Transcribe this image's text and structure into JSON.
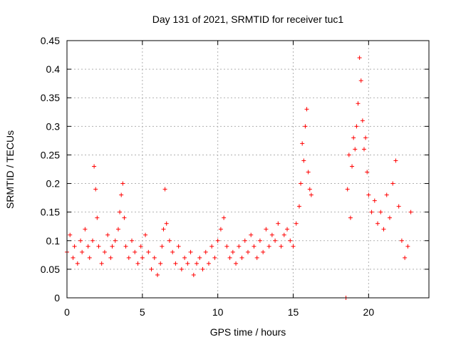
{
  "chart_data": {
    "type": "scatter",
    "title": "Day 131 of 2021, SRMTID for receiver tuc1",
    "xlabel": "GPS time / hours",
    "ylabel": "SRMTID / TECUs",
    "xlim": [
      0,
      24
    ],
    "ylim": [
      0,
      0.45
    ],
    "xticks": [
      0,
      5,
      10,
      15,
      20
    ],
    "xtick_labels": [
      "0",
      "5",
      "10",
      "15",
      "20"
    ],
    "yticks": [
      0,
      0.05,
      0.1,
      0.15,
      0.2,
      0.25,
      0.3,
      0.35,
      0.4,
      0.45
    ],
    "ytick_labels": [
      "0",
      "0.05",
      "0.1",
      "0.15",
      "0.2",
      "0.25",
      "0.3",
      "0.35",
      "0.4",
      "0.45"
    ],
    "grid": true,
    "marker": "+",
    "series": [
      {
        "name": "SRMTID",
        "color": "#ff0000",
        "x": [
          0.0,
          0.2,
          0.4,
          0.5,
          0.7,
          0.9,
          1.0,
          1.2,
          1.4,
          1.5,
          1.7,
          1.8,
          1.9,
          2.0,
          2.1,
          2.3,
          2.5,
          2.7,
          2.9,
          3.0,
          3.2,
          3.4,
          3.5,
          3.6,
          3.7,
          3.8,
          3.9,
          4.1,
          4.3,
          4.5,
          4.7,
          4.9,
          5.0,
          5.2,
          5.4,
          5.6,
          5.8,
          6.0,
          6.2,
          6.3,
          6.4,
          6.5,
          6.6,
          6.8,
          7.0,
          7.2,
          7.4,
          7.6,
          7.8,
          8.0,
          8.2,
          8.4,
          8.6,
          8.8,
          9.0,
          9.2,
          9.4,
          9.6,
          9.8,
          10.0,
          10.2,
          10.4,
          10.6,
          10.8,
          11.0,
          11.2,
          11.4,
          11.6,
          11.8,
          12.0,
          12.2,
          12.4,
          12.6,
          12.8,
          13.0,
          13.2,
          13.4,
          13.6,
          13.8,
          14.0,
          14.2,
          14.4,
          14.6,
          14.8,
          15.0,
          15.2,
          15.4,
          15.5,
          15.6,
          15.7,
          15.8,
          15.9,
          16.0,
          16.1,
          16.2,
          18.5,
          18.6,
          18.7,
          18.8,
          18.9,
          19.0,
          19.1,
          19.2,
          19.3,
          19.4,
          19.5,
          19.6,
          19.7,
          19.8,
          19.9,
          20.0,
          20.2,
          20.4,
          20.6,
          20.8,
          21.0,
          21.2,
          21.4,
          21.6,
          21.8,
          22.0,
          22.2,
          22.4,
          22.6,
          22.8
        ],
        "y": [
          0.08,
          0.11,
          0.07,
          0.09,
          0.06,
          0.1,
          0.08,
          0.12,
          0.09,
          0.07,
          0.1,
          0.23,
          0.19,
          0.14,
          0.09,
          0.06,
          0.08,
          0.11,
          0.07,
          0.09,
          0.1,
          0.12,
          0.15,
          0.18,
          0.2,
          0.14,
          0.09,
          0.07,
          0.1,
          0.08,
          0.06,
          0.09,
          0.07,
          0.11,
          0.08,
          0.05,
          0.07,
          0.04,
          0.06,
          0.09,
          0.12,
          0.19,
          0.13,
          0.1,
          0.08,
          0.06,
          0.09,
          0.05,
          0.07,
          0.06,
          0.08,
          0.04,
          0.06,
          0.07,
          0.05,
          0.08,
          0.06,
          0.09,
          0.07,
          0.1,
          0.12,
          0.14,
          0.09,
          0.07,
          0.08,
          0.06,
          0.09,
          0.07,
          0.1,
          0.08,
          0.11,
          0.09,
          0.07,
          0.1,
          0.08,
          0.12,
          0.09,
          0.11,
          0.1,
          0.13,
          0.09,
          0.11,
          0.12,
          0.1,
          0.09,
          0.13,
          0.16,
          0.2,
          0.27,
          0.24,
          0.3,
          0.33,
          0.22,
          0.19,
          0.18,
          0.0,
          0.19,
          0.25,
          0.14,
          0.23,
          0.28,
          0.26,
          0.3,
          0.34,
          0.42,
          0.38,
          0.31,
          0.26,
          0.28,
          0.22,
          0.18,
          0.15,
          0.17,
          0.13,
          0.15,
          0.12,
          0.18,
          0.14,
          0.2,
          0.24,
          0.16,
          0.1,
          0.07,
          0.09,
          0.15
        ]
      }
    ]
  }
}
